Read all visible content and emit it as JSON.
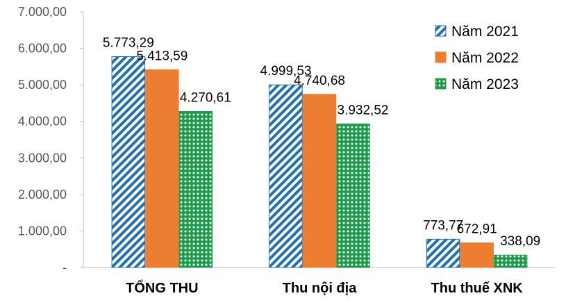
{
  "chart_data": {
    "type": "bar",
    "categories": [
      "TỔNG THU",
      "Thu nội địa",
      "Thu thuế XNK"
    ],
    "series": [
      {
        "name": "Năm 2021",
        "values": [
          5773.29,
          4999.53,
          773.77
        ],
        "labels": [
          "5.773,29",
          "4.999,53",
          "773,77"
        ],
        "color": "#1F6FB4",
        "pattern": "diagonal-stripes"
      },
      {
        "name": "Năm 2022",
        "values": [
          5413.59,
          4740.68,
          672.91
        ],
        "labels": [
          "5.413,59",
          "4.740,68",
          "672,91"
        ],
        "color": "#ED7D31",
        "pattern": "solid"
      },
      {
        "name": "Năm 2023",
        "values": [
          4270.61,
          3932.52,
          338.09
        ],
        "labels": [
          "4.270,61",
          "3.932,52",
          "338,09"
        ],
        "color": "#1E9C4C",
        "pattern": "dots"
      }
    ],
    "ylim": [
      0,
      7000
    ],
    "yticks": [
      {
        "value": 0,
        "label": "-"
      },
      {
        "value": 1000,
        "label": "1.000,00"
      },
      {
        "value": 2000,
        "label": "2.000,00"
      },
      {
        "value": 3000,
        "label": "3.000,00"
      },
      {
        "value": 4000,
        "label": "4.000,00"
      },
      {
        "value": 5000,
        "label": "5.000,00"
      },
      {
        "value": 6000,
        "label": "6.000,00"
      },
      {
        "value": 7000,
        "label": "7.000,00"
      }
    ],
    "grid": false,
    "legend_position": "top-right"
  }
}
